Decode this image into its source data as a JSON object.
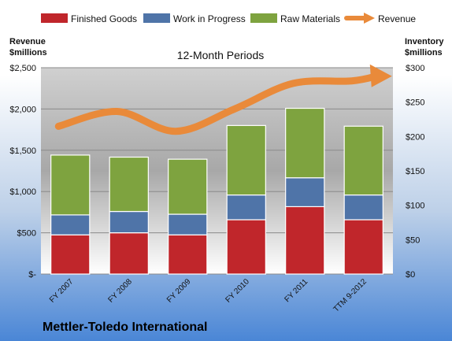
{
  "chart_data": {
    "type": "bar",
    "stacked": true,
    "subtitle": "12-Month Periods",
    "company": "Mettler-Toledo International",
    "categories": [
      "FY 2007",
      "FY 2008",
      "FY 2009",
      "FY 2010",
      "FY 2011",
      "TTM 9-2012"
    ],
    "series": [
      {
        "name": "Finished Goods",
        "color": "#c0262b",
        "values": [
          57,
          60,
          57,
          79,
          98,
          79
        ]
      },
      {
        "name": "Work in Progress",
        "color": "#4f74a8",
        "values": [
          29,
          31,
          30,
          36,
          42,
          36
        ]
      },
      {
        "name": "Raw Materials",
        "color": "#7ea33f",
        "values": [
          87,
          79,
          80,
          101,
          101,
          100
        ]
      }
    ],
    "line_series": {
      "name": "Revenue",
      "color": "#e98a3a",
      "values": [
        1790,
        1970,
        1730,
        2000,
        2310,
        2340
      ]
    },
    "left_axis": {
      "label_line1": "Revenue",
      "label_line2": "$millions",
      "min": 0,
      "max": 2500,
      "ticks": [
        0,
        500,
        1000,
        1500,
        2000,
        2500
      ],
      "tick_labels": [
        "$-",
        "$500",
        "$1,000",
        "$1,500",
        "$2,000",
        "$2,500"
      ]
    },
    "right_axis": {
      "label_line1": "Inventory",
      "label_line2": "$millions",
      "min": 0,
      "max": 300,
      "ticks": [
        0,
        50,
        100,
        150,
        200,
        250,
        300
      ],
      "tick_labels": [
        "$0",
        "$50",
        "$100",
        "$150",
        "$200",
        "$250",
        "$300"
      ]
    },
    "grid": true,
    "legend_position": "top"
  }
}
